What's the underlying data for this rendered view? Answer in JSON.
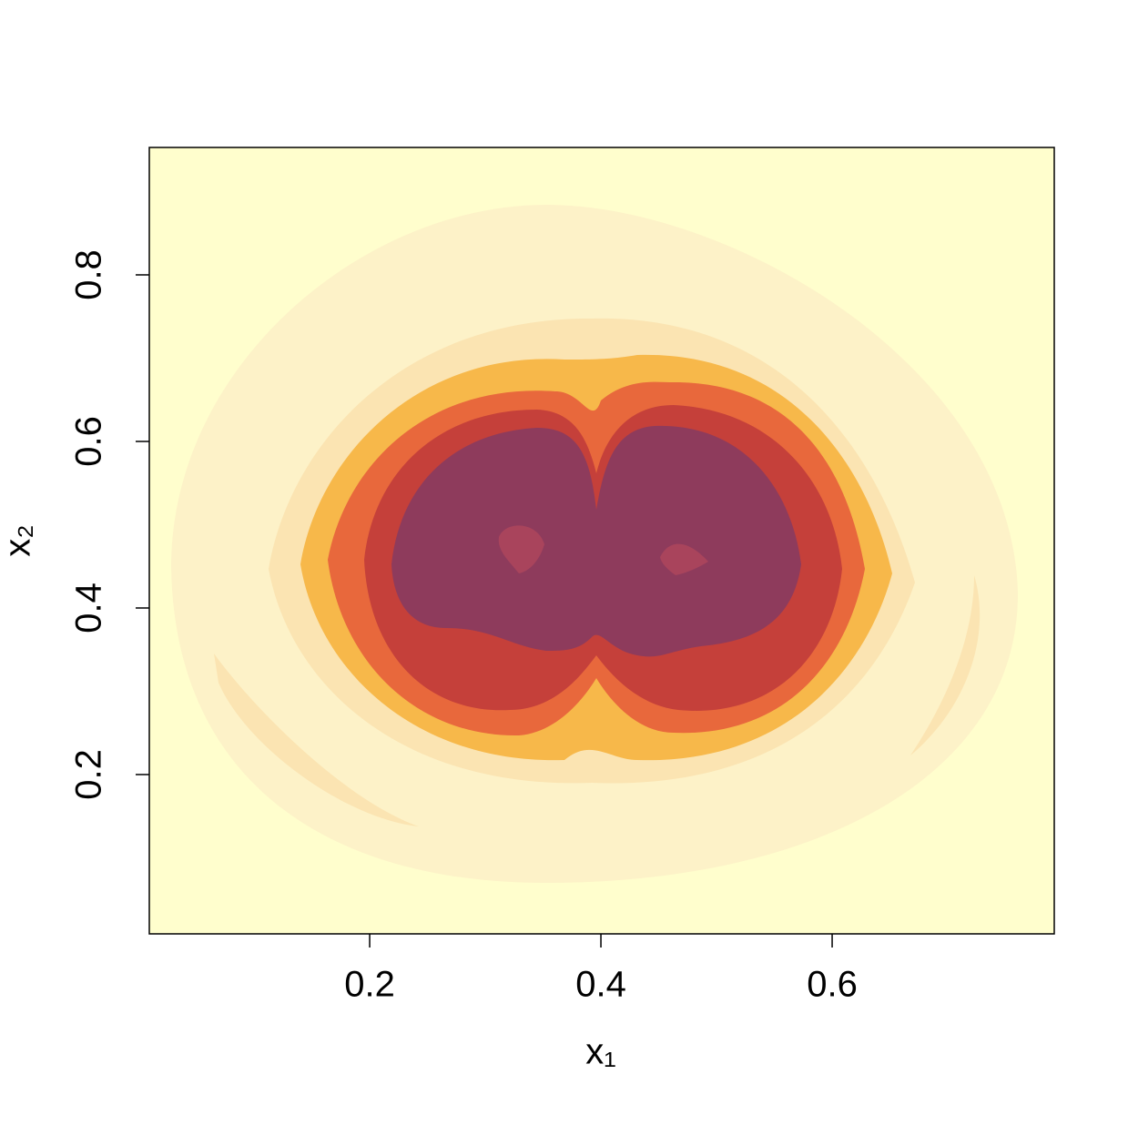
{
  "chart_data": {
    "type": "contour",
    "xlabel": "x₁",
    "ylabel": "x₂",
    "xlim": [
      0.0094,
      0.7921
    ],
    "ylim": [
      0.0087,
      0.953
    ],
    "xticks": [
      0.2,
      0.4,
      0.6
    ],
    "yticks": [
      0.2,
      0.4,
      0.6,
      0.8
    ],
    "colors": [
      "#fffecd",
      "#fdf2c8",
      "#fbe4b2",
      "#f7b84a",
      "#e8683c",
      "#c5403a",
      "#8e3b5c",
      "#a9445c"
    ]
  }
}
